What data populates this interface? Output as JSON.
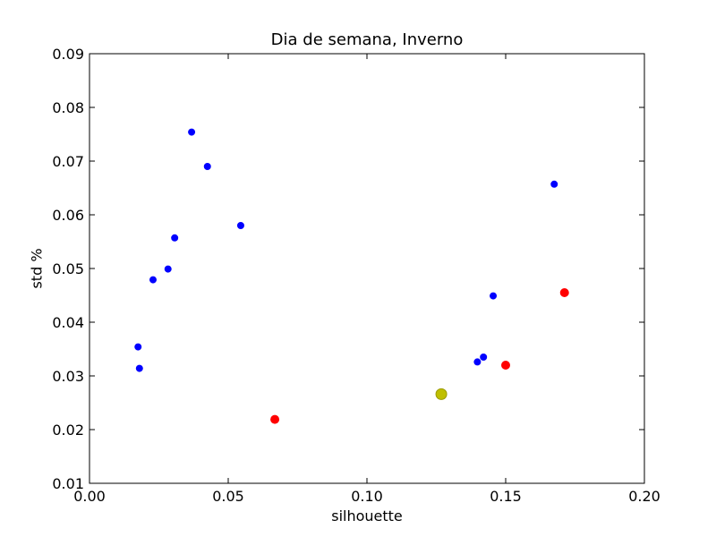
{
  "chart_data": {
    "type": "scatter",
    "title": "Dia de semana, Inverno",
    "xlabel": "silhouette",
    "ylabel": "std %",
    "xlim": [
      0.0,
      0.2
    ],
    "ylim": [
      0.01,
      0.09
    ],
    "xticks": [
      "0.00",
      "0.05",
      "0.10",
      "0.15",
      "0.20"
    ],
    "yticks": [
      "0.01",
      "0.02",
      "0.03",
      "0.04",
      "0.05",
      "0.06",
      "0.07",
      "0.08",
      "0.09"
    ],
    "grid": false,
    "series": [
      {
        "color": "#0000ff",
        "marker": "small-circle",
        "points": [
          [
            0.0368,
            0.0754
          ],
          [
            0.0425,
            0.069
          ],
          [
            0.0545,
            0.058
          ],
          [
            0.0307,
            0.0557
          ],
          [
            0.0283,
            0.0499
          ],
          [
            0.0229,
            0.0479
          ],
          [
            0.0175,
            0.0354
          ],
          [
            0.018,
            0.0314
          ],
          [
            0.1675,
            0.0657
          ],
          [
            0.1455,
            0.0449
          ],
          [
            0.142,
            0.0335
          ],
          [
            0.1398,
            0.0326
          ]
        ]
      },
      {
        "color": "#ff0000",
        "marker": "circle",
        "points": [
          [
            0.0668,
            0.0219
          ],
          [
            0.15,
            0.032
          ],
          [
            0.1712,
            0.0455
          ]
        ]
      },
      {
        "color": "#bfbf00",
        "marker": "large-circle",
        "points": [
          [
            0.1268,
            0.0266
          ]
        ]
      }
    ]
  }
}
